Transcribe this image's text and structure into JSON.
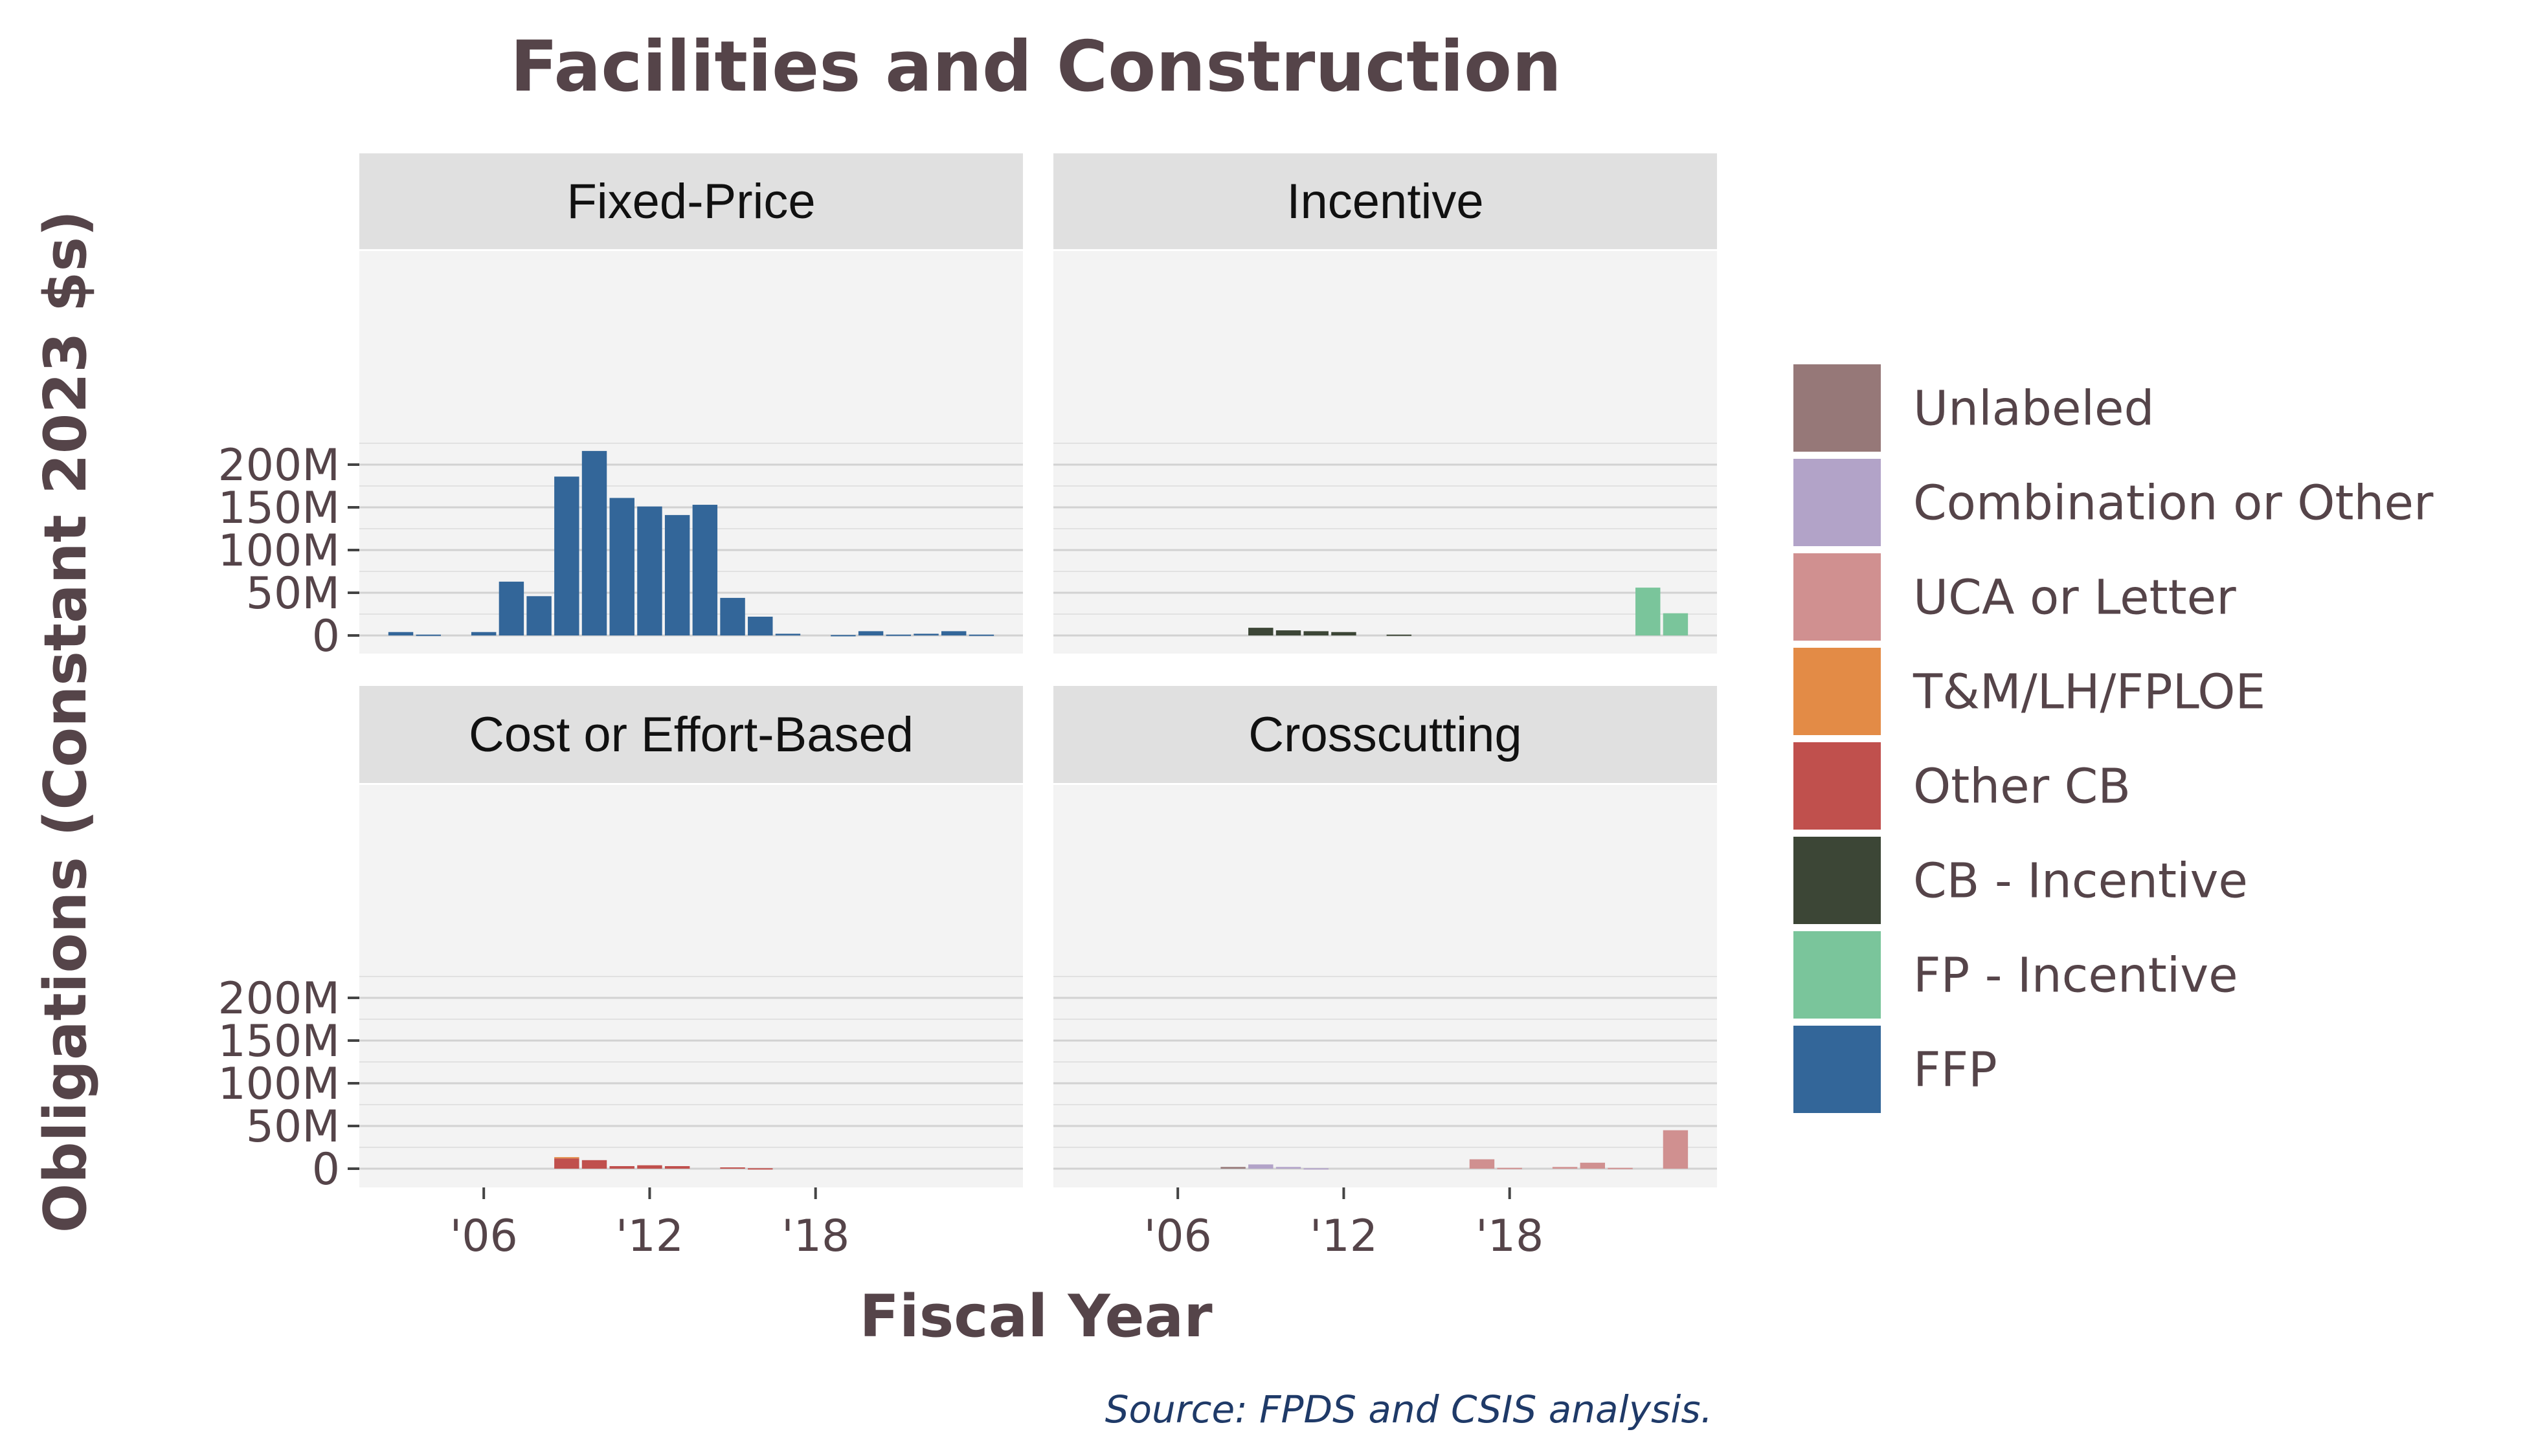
{
  "chart_data": {
    "type": "bar",
    "title": "Facilities and Construction",
    "xlabel": "Fiscal Year",
    "ylabel": "Obligations (Constant 2023 $s)",
    "source": "Source: FPDS and CSIS analysis.",
    "x_ticks": [
      {
        "year": 2006,
        "label": "'06"
      },
      {
        "year": 2012,
        "label": "'12"
      },
      {
        "year": 2018,
        "label": "'18"
      }
    ],
    "y_ticks": [
      {
        "value": 0,
        "label": "0"
      },
      {
        "value": 50,
        "label": "50M"
      },
      {
        "value": 100,
        "label": "100M"
      },
      {
        "value": 150,
        "label": "150M"
      },
      {
        "value": 200,
        "label": "200M"
      }
    ],
    "ylim": [
      0,
      230
    ],
    "xlim": [
      2001.5,
      2025.5
    ],
    "grid": true,
    "legend_position": "right",
    "legend": [
      {
        "name": "Unlabeled",
        "color": "#967878"
      },
      {
        "name": "Combination or Other",
        "color": "#b2a3c8"
      },
      {
        "name": "UCA or Letter",
        "color": "#d09090"
      },
      {
        "name": "T&M/LH/FPLOE",
        "color": "#e38b46"
      },
      {
        "name": "Other CB",
        "color": "#c0504d"
      },
      {
        "name": "CB - Incentive",
        "color": "#3c4636"
      },
      {
        "name": "FP - Incentive",
        "color": "#7ac59b"
      },
      {
        "name": "FFP",
        "color": "#336699"
      }
    ],
    "panels": [
      {
        "name": "Fixed-Price",
        "stacks": [
          {
            "year": 2003,
            "segments": [
              {
                "series": "FFP",
                "value": 4
              }
            ]
          },
          {
            "year": 2004,
            "segments": [
              {
                "series": "FFP",
                "value": 1
              }
            ]
          },
          {
            "year": 2006,
            "segments": [
              {
                "series": "FFP",
                "value": 4
              }
            ]
          },
          {
            "year": 2007,
            "segments": [
              {
                "series": "FFP",
                "value": 63
              }
            ]
          },
          {
            "year": 2008,
            "segments": [
              {
                "series": "FFP",
                "value": 46
              }
            ]
          },
          {
            "year": 2009,
            "segments": [
              {
                "series": "FFP",
                "value": 186
              }
            ]
          },
          {
            "year": 2010,
            "segments": [
              {
                "series": "FFP",
                "value": 216
              }
            ]
          },
          {
            "year": 2011,
            "segments": [
              {
                "series": "FFP",
                "value": 161
              }
            ]
          },
          {
            "year": 2012,
            "segments": [
              {
                "series": "FFP",
                "value": 151
              }
            ]
          },
          {
            "year": 2013,
            "segments": [
              {
                "series": "FFP",
                "value": 141
              }
            ]
          },
          {
            "year": 2014,
            "segments": [
              {
                "series": "FFP",
                "value": 153
              }
            ]
          },
          {
            "year": 2015,
            "segments": [
              {
                "series": "FFP",
                "value": 44
              }
            ]
          },
          {
            "year": 2016,
            "segments": [
              {
                "series": "FFP",
                "value": 22
              }
            ]
          },
          {
            "year": 2017,
            "segments": [
              {
                "series": "FFP",
                "value": 2
              }
            ]
          },
          {
            "year": 2019,
            "segments": [
              {
                "series": "FFP",
                "value": 0.5
              }
            ]
          },
          {
            "year": 2020,
            "segments": [
              {
                "series": "FFP",
                "value": 5
              }
            ]
          },
          {
            "year": 2021,
            "segments": [
              {
                "series": "FFP",
                "value": 1
              }
            ]
          },
          {
            "year": 2022,
            "segments": [
              {
                "series": "FFP",
                "value": 2
              }
            ]
          },
          {
            "year": 2023,
            "segments": [
              {
                "series": "FFP",
                "value": 5
              }
            ]
          },
          {
            "year": 2024,
            "segments": [
              {
                "series": "FFP",
                "value": 1
              }
            ]
          }
        ]
      },
      {
        "name": "Incentive",
        "stacks": [
          {
            "year": 2009,
            "segments": [
              {
                "series": "CB - Incentive",
                "value": 9
              }
            ]
          },
          {
            "year": 2010,
            "segments": [
              {
                "series": "CB - Incentive",
                "value": 6
              }
            ]
          },
          {
            "year": 2011,
            "segments": [
              {
                "series": "CB - Incentive",
                "value": 5
              }
            ]
          },
          {
            "year": 2012,
            "segments": [
              {
                "series": "CB - Incentive",
                "value": 4
              }
            ]
          },
          {
            "year": 2014,
            "segments": [
              {
                "series": "CB - Incentive",
                "value": 1
              }
            ]
          },
          {
            "year": 2023,
            "segments": [
              {
                "series": "FP - Incentive",
                "value": 56
              }
            ]
          },
          {
            "year": 2024,
            "segments": [
              {
                "series": "FP - Incentive",
                "value": 26
              }
            ]
          }
        ]
      },
      {
        "name": "Cost or Effort-Based",
        "stacks": [
          {
            "year": 2009,
            "segments": [
              {
                "series": "Other CB",
                "value": 12
              },
              {
                "series": "T&M/LH/FPLOE",
                "value": 1.5
              }
            ]
          },
          {
            "year": 2010,
            "segments": [
              {
                "series": "Other CB",
                "value": 10
              }
            ]
          },
          {
            "year": 2011,
            "segments": [
              {
                "series": "Other CB",
                "value": 3
              }
            ]
          },
          {
            "year": 2012,
            "segments": [
              {
                "series": "Other CB",
                "value": 4
              }
            ]
          },
          {
            "year": 2013,
            "segments": [
              {
                "series": "Other CB",
                "value": 3
              }
            ]
          },
          {
            "year": 2015,
            "segments": [
              {
                "series": "Other CB",
                "value": 1.5
              }
            ]
          },
          {
            "year": 2016,
            "segments": [
              {
                "series": "Other CB",
                "value": 0.5
              }
            ]
          }
        ]
      },
      {
        "name": "Crosscutting",
        "stacks": [
          {
            "year": 2008,
            "segments": [
              {
                "series": "Unlabeled",
                "value": 2
              }
            ]
          },
          {
            "year": 2009,
            "segments": [
              {
                "series": "Combination or Other",
                "value": 5
              }
            ]
          },
          {
            "year": 2010,
            "segments": [
              {
                "series": "Combination or Other",
                "value": 2
              }
            ]
          },
          {
            "year": 2011,
            "segments": [
              {
                "series": "Combination or Other",
                "value": 0.5
              }
            ]
          },
          {
            "year": 2017,
            "segments": [
              {
                "series": "UCA or Letter",
                "value": 11
              }
            ]
          },
          {
            "year": 2018,
            "segments": [
              {
                "series": "UCA or Letter",
                "value": 1
              }
            ]
          },
          {
            "year": 2020,
            "segments": [
              {
                "series": "UCA or Letter",
                "value": 2
              }
            ]
          },
          {
            "year": 2021,
            "segments": [
              {
                "series": "UCA or Letter",
                "value": 7
              }
            ]
          },
          {
            "year": 2022,
            "segments": [
              {
                "series": "UCA or Letter",
                "value": 1
              }
            ]
          },
          {
            "year": 2024,
            "segments": [
              {
                "series": "UCA or Letter",
                "value": 45
              }
            ]
          }
        ]
      }
    ]
  }
}
